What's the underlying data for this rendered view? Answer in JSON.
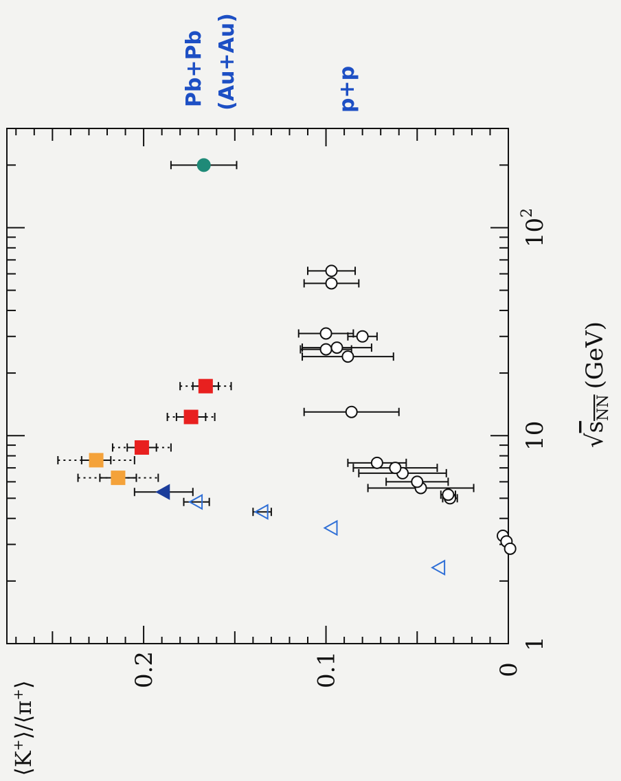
{
  "chart_data": {
    "type": "scatter",
    "orientation": "rotated-90-cw",
    "x_scale": "log",
    "xlim": [
      1,
      300
    ],
    "ylim": [
      0,
      0.275
    ],
    "grid": false,
    "xlabel": "√s_NN (GeV)",
    "xlabel_parts": {
      "radical": "√",
      "s": "s",
      "sub": "NN",
      "unit": "(GeV)"
    },
    "ylabel": "⟨K+⟩/⟨π+⟩",
    "ylabel_parts": {
      "l1": "⟨K",
      "sup1": "+",
      "mid": "⟩/⟨π",
      "sup2": "+",
      "r": "⟩"
    },
    "x_ticks": [
      {
        "value": 1,
        "label": "1"
      },
      {
        "value": 10,
        "label": "10"
      },
      {
        "value": 100,
        "label": "10",
        "sup": "2"
      }
    ],
    "y_ticks": [
      {
        "value": 0,
        "label": "0"
      },
      {
        "value": 0.1,
        "label": "0.1"
      },
      {
        "value": 0.2,
        "label": "0.2"
      }
    ],
    "annotations": [
      {
        "text": "Pb+Pb",
        "color": "#1d4fc4"
      },
      {
        "text": "(Au+Au)",
        "color": "#1d4fc4"
      },
      {
        "text": "p+p",
        "color": "#1d4fc4"
      }
    ],
    "series": [
      {
        "marker": "circle",
        "fill": "#1f8a78",
        "stroke": "#1f8a78",
        "size": 9,
        "points": [
          {
            "x": 200,
            "y": 0.167,
            "xerr": 0.018
          }
        ]
      },
      {
        "marker": "square",
        "fill": "#e8201f",
        "stroke": "#e8201f",
        "size": 10,
        "points": [
          {
            "x": 8.77,
            "y": 0.201,
            "xerr": 0.008,
            "xerr2": 0.016
          },
          {
            "x": 12.3,
            "y": 0.174,
            "xerr": 0.008,
            "xerr2": 0.013
          },
          {
            "x": 17.3,
            "y": 0.166,
            "xerr": 0.007,
            "xerr2": 0.014
          }
        ]
      },
      {
        "marker": "square",
        "fill": "#f4a23a",
        "stroke": "#f4a23a",
        "size": 10,
        "points": [
          {
            "x": 7.62,
            "y": 0.226,
            "xerr": 0.008,
            "xerr2": 0.021
          },
          {
            "x": 6.27,
            "y": 0.214,
            "xerr": 0.01,
            "xerr2": 0.022
          }
        ]
      },
      {
        "marker": "triangle-filled",
        "fill": "#1b3d9b",
        "stroke": "#1b3d9b",
        "size": 10,
        "points": [
          {
            "x": 5.36,
            "y": 0.189,
            "xerr": 0.016
          }
        ]
      },
      {
        "marker": "triangle-open",
        "fill": "none",
        "stroke": "#2f6fd6",
        "size": 10,
        "points": [
          {
            "x": 4.8,
            "y": 0.171,
            "xerr": 0.007
          },
          {
            "x": 4.3,
            "y": 0.135,
            "xerr": 0.005
          },
          {
            "x": 3.6,
            "y": 0.097
          },
          {
            "x": 2.32,
            "y": 0.038
          }
        ]
      },
      {
        "marker": "circle-open",
        "fill": "#ffffff",
        "stroke": "#111111",
        "size": 8,
        "points": [
          {
            "x": 3.3,
            "y": 0.003
          },
          {
            "x": 3.1,
            "y": 0.001
          },
          {
            "x": 2.86,
            "y": -0.001
          },
          {
            "x": 5.0,
            "y": 0.032,
            "xerr": 0.004
          },
          {
            "x": 5.2,
            "y": 0.033,
            "xerr": 0.004
          },
          {
            "x": 5.6,
            "y": 0.048,
            "xerr": 0.029
          },
          {
            "x": 6.0,
            "y": 0.05,
            "xerr": 0.017
          },
          {
            "x": 6.6,
            "y": 0.058,
            "xerr": 0.024
          },
          {
            "x": 7.0,
            "y": 0.062,
            "xerr": 0.023
          },
          {
            "x": 7.4,
            "y": 0.072,
            "xerr": 0.016
          },
          {
            "x": 13.0,
            "y": 0.086,
            "xerr": 0.026
          },
          {
            "x": 24.0,
            "y": 0.088,
            "xerr": 0.025
          },
          {
            "x": 26.0,
            "y": 0.1,
            "xerr": 0.014
          },
          {
            "x": 26.5,
            "y": 0.094,
            "xerr": 0.019
          },
          {
            "x": 30.0,
            "y": 0.08,
            "xerr": 0.008
          },
          {
            "x": 31.0,
            "y": 0.1,
            "xerr": 0.015
          },
          {
            "x": 54.0,
            "y": 0.097,
            "xerr": 0.015
          },
          {
            "x": 62.0,
            "y": 0.097,
            "xerr": 0.013
          }
        ]
      }
    ]
  }
}
